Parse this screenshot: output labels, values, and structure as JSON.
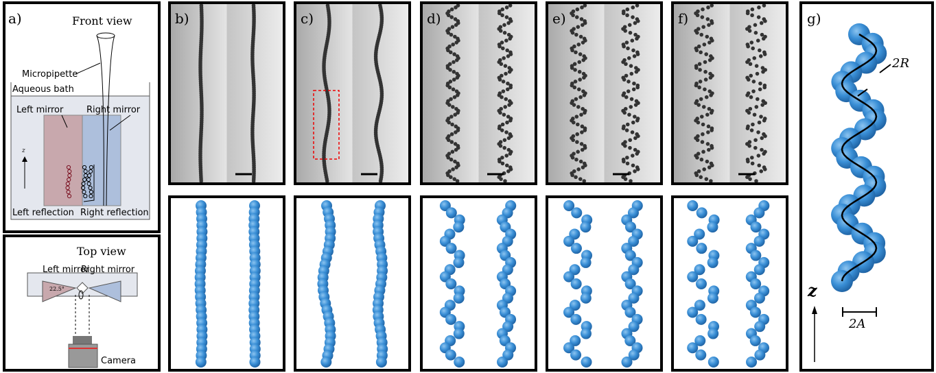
{
  "panels": {
    "a": {
      "label": "a)",
      "title": "Front view",
      "micropipette": "Micropipette",
      "bath": "Aqueous bath",
      "left_mirror": "Left mirror",
      "right_mirror": "Right mirror",
      "axis": "z",
      "left_reflection": "Left reflection",
      "right_reflection": "Right reflection"
    },
    "top": {
      "title": "Top view",
      "left_mirror": "Left mirror",
      "right_mirror": "Right mirror",
      "angle": "22.5°",
      "camera": "Camera"
    },
    "labels": [
      "b)",
      "c)",
      "d)",
      "e)",
      "f)"
    ],
    "g": {
      "label": "g)",
      "radius": "2R",
      "amplitude": "2A",
      "axis": "z"
    }
  }
}
